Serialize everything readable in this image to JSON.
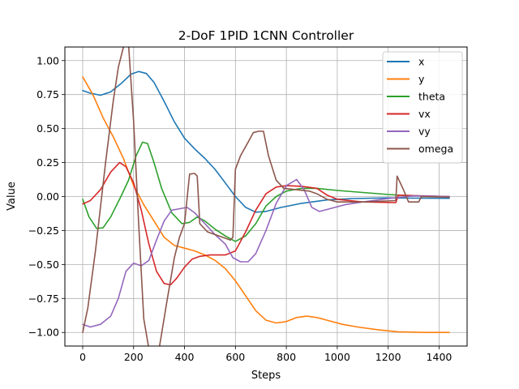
{
  "chart_data": {
    "type": "line",
    "title": "2-DoF 1PID 1CNN Controller",
    "xlabel": "Steps",
    "ylabel": "Value",
    "xlim": [
      -70,
      1510
    ],
    "ylim": [
      -1.1,
      1.1
    ],
    "xticks": [
      0,
      200,
      400,
      600,
      800,
      1000,
      1200,
      1400
    ],
    "yticks": [
      -1.0,
      -0.75,
      -0.5,
      -0.25,
      0.0,
      0.25,
      0.5,
      0.75,
      1.0
    ],
    "ytick_labels": [
      "−1.00",
      "−0.75",
      "−0.50",
      "−0.25",
      "0.00",
      "0.25",
      "0.50",
      "0.75",
      "1.00"
    ],
    "grid": true,
    "legend_position": "top-right",
    "series": [
      {
        "name": "x",
        "color": "#1f77b4",
        "points": [
          [
            0,
            0.78
          ],
          [
            30,
            0.76
          ],
          [
            70,
            0.745
          ],
          [
            110,
            0.77
          ],
          [
            150,
            0.83
          ],
          [
            190,
            0.9
          ],
          [
            220,
            0.92
          ],
          [
            250,
            0.905
          ],
          [
            280,
            0.84
          ],
          [
            320,
            0.7
          ],
          [
            360,
            0.55
          ],
          [
            400,
            0.43
          ],
          [
            440,
            0.35
          ],
          [
            480,
            0.28
          ],
          [
            520,
            0.2
          ],
          [
            560,
            0.1
          ],
          [
            600,
            0.0
          ],
          [
            640,
            -0.08
          ],
          [
            680,
            -0.115
          ],
          [
            720,
            -0.11
          ],
          [
            780,
            -0.08
          ],
          [
            860,
            -0.05
          ],
          [
            960,
            -0.025
          ],
          [
            1060,
            -0.015
          ],
          [
            1200,
            -0.01
          ],
          [
            1300,
            -0.012
          ],
          [
            1440,
            -0.013
          ]
        ]
      },
      {
        "name": "y",
        "color": "#ff7f0e",
        "points": [
          [
            0,
            0.88
          ],
          [
            40,
            0.75
          ],
          [
            80,
            0.58
          ],
          [
            120,
            0.44
          ],
          [
            160,
            0.28
          ],
          [
            200,
            0.08
          ],
          [
            240,
            -0.06
          ],
          [
            280,
            -0.18
          ],
          [
            320,
            -0.3
          ],
          [
            360,
            -0.36
          ],
          [
            400,
            -0.38
          ],
          [
            440,
            -0.4
          ],
          [
            480,
            -0.43
          ],
          [
            520,
            -0.47
          ],
          [
            560,
            -0.53
          ],
          [
            600,
            -0.62
          ],
          [
            640,
            -0.73
          ],
          [
            680,
            -0.84
          ],
          [
            720,
            -0.91
          ],
          [
            760,
            -0.93
          ],
          [
            800,
            -0.92
          ],
          [
            840,
            -0.89
          ],
          [
            880,
            -0.88
          ],
          [
            920,
            -0.89
          ],
          [
            960,
            -0.91
          ],
          [
            1020,
            -0.94
          ],
          [
            1080,
            -0.96
          ],
          [
            1160,
            -0.98
          ],
          [
            1240,
            -0.995
          ],
          [
            1340,
            -1.0
          ],
          [
            1440,
            -1.0
          ]
        ]
      },
      {
        "name": "theta",
        "color": "#2ca02c",
        "points": [
          [
            0,
            -0.02
          ],
          [
            25,
            -0.15
          ],
          [
            55,
            -0.235
          ],
          [
            80,
            -0.23
          ],
          [
            110,
            -0.15
          ],
          [
            150,
            0.0
          ],
          [
            180,
            0.12
          ],
          [
            210,
            0.3
          ],
          [
            235,
            0.4
          ],
          [
            255,
            0.39
          ],
          [
            280,
            0.25
          ],
          [
            310,
            0.06
          ],
          [
            350,
            -0.12
          ],
          [
            390,
            -0.2
          ],
          [
            420,
            -0.19
          ],
          [
            450,
            -0.15
          ],
          [
            480,
            -0.18
          ],
          [
            520,
            -0.24
          ],
          [
            560,
            -0.29
          ],
          [
            600,
            -0.33
          ],
          [
            640,
            -0.29
          ],
          [
            680,
            -0.2
          ],
          [
            720,
            -0.07
          ],
          [
            760,
            0.0
          ],
          [
            800,
            0.04
          ],
          [
            860,
            0.06
          ],
          [
            920,
            0.06
          ],
          [
            1000,
            0.045
          ],
          [
            1100,
            0.03
          ],
          [
            1200,
            0.015
          ],
          [
            1300,
            0.005
          ],
          [
            1440,
            0.0
          ]
        ]
      },
      {
        "name": "vx",
        "color": "#d62728",
        "points": [
          [
            0,
            -0.055
          ],
          [
            30,
            -0.03
          ],
          [
            70,
            0.05
          ],
          [
            110,
            0.18
          ],
          [
            145,
            0.25
          ],
          [
            170,
            0.22
          ],
          [
            200,
            0.1
          ],
          [
            230,
            -0.1
          ],
          [
            260,
            -0.35
          ],
          [
            290,
            -0.55
          ],
          [
            320,
            -0.64
          ],
          [
            345,
            -0.65
          ],
          [
            370,
            -0.6
          ],
          [
            400,
            -0.52
          ],
          [
            430,
            -0.46
          ],
          [
            460,
            -0.44
          ],
          [
            500,
            -0.43
          ],
          [
            560,
            -0.43
          ],
          [
            600,
            -0.4
          ],
          [
            640,
            -0.26
          ],
          [
            680,
            -0.1
          ],
          [
            720,
            0.02
          ],
          [
            760,
            0.07
          ],
          [
            800,
            0.08
          ],
          [
            860,
            0.075
          ],
          [
            920,
            0.06
          ],
          [
            960,
            0.01
          ],
          [
            1000,
            -0.02
          ],
          [
            1100,
            -0.04
          ],
          [
            1230,
            -0.045
          ],
          [
            1240,
            0.01
          ],
          [
            1440,
            0.0
          ]
        ]
      },
      {
        "name": "vy",
        "color": "#9467bd",
        "points": [
          [
            0,
            -0.94
          ],
          [
            30,
            -0.96
          ],
          [
            70,
            -0.94
          ],
          [
            110,
            -0.88
          ],
          [
            140,
            -0.75
          ],
          [
            170,
            -0.55
          ],
          [
            200,
            -0.49
          ],
          [
            230,
            -0.51
          ],
          [
            260,
            -0.47
          ],
          [
            290,
            -0.32
          ],
          [
            320,
            -0.18
          ],
          [
            350,
            -0.1
          ],
          [
            380,
            -0.09
          ],
          [
            410,
            -0.08
          ],
          [
            440,
            -0.12
          ],
          [
            480,
            -0.2
          ],
          [
            520,
            -0.28
          ],
          [
            560,
            -0.35
          ],
          [
            590,
            -0.45
          ],
          [
            620,
            -0.48
          ],
          [
            650,
            -0.48
          ],
          [
            680,
            -0.42
          ],
          [
            720,
            -0.25
          ],
          [
            760,
            -0.05
          ],
          [
            800,
            0.08
          ],
          [
            840,
            0.125
          ],
          [
            870,
            0.05
          ],
          [
            900,
            -0.08
          ],
          [
            930,
            -0.11
          ],
          [
            970,
            -0.09
          ],
          [
            1030,
            -0.06
          ],
          [
            1100,
            -0.04
          ],
          [
            1200,
            -0.015
          ],
          [
            1300,
            0.005
          ],
          [
            1440,
            0.0
          ]
        ]
      },
      {
        "name": "omega",
        "color": "#8c564b",
        "points": [
          [
            0,
            -1.0
          ],
          [
            20,
            -0.82
          ],
          [
            50,
            -0.4
          ],
          [
            90,
            0.25
          ],
          [
            120,
            0.7
          ],
          [
            140,
            0.95
          ],
          [
            160,
            1.1
          ],
          [
            180,
            1.12
          ],
          [
            200,
            0.55
          ],
          [
            220,
            -0.2
          ],
          [
            240,
            -0.9
          ],
          [
            260,
            -1.12
          ],
          [
            280,
            -1.15
          ],
          [
            300,
            -1.12
          ],
          [
            330,
            -0.78
          ],
          [
            360,
            -0.45
          ],
          [
            380,
            -0.3
          ],
          [
            400,
            -0.2
          ],
          [
            420,
            0.165
          ],
          [
            440,
            0.17
          ],
          [
            450,
            0.15
          ],
          [
            460,
            -0.2
          ],
          [
            490,
            -0.26
          ],
          [
            520,
            -0.28
          ],
          [
            550,
            -0.3
          ],
          [
            580,
            -0.32
          ],
          [
            590,
            -0.3
          ],
          [
            600,
            0.2
          ],
          [
            620,
            0.3
          ],
          [
            650,
            0.4
          ],
          [
            670,
            0.47
          ],
          [
            690,
            0.48
          ],
          [
            710,
            0.48
          ],
          [
            730,
            0.3
          ],
          [
            760,
            0.12
          ],
          [
            790,
            0.06
          ],
          [
            840,
            0.05
          ],
          [
            890,
            0.04
          ],
          [
            920,
            0.02
          ],
          [
            960,
            -0.02
          ],
          [
            1000,
            -0.04
          ],
          [
            1100,
            -0.04
          ],
          [
            1230,
            -0.03
          ],
          [
            1235,
            0.15
          ],
          [
            1260,
            0.05
          ],
          [
            1280,
            -0.04
          ],
          [
            1320,
            -0.04
          ],
          [
            1330,
            0.0
          ],
          [
            1440,
            -0.005
          ]
        ]
      }
    ]
  }
}
